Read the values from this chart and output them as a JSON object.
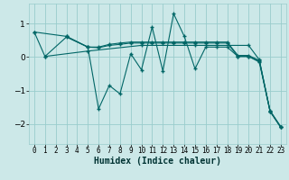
{
  "title": "",
  "xlabel": "Humidex (Indice chaleur)",
  "ylabel": "",
  "bg_color": "#cce8e8",
  "grid_color": "#99cccc",
  "line_color": "#006666",
  "xlim": [
    -0.5,
    23.5
  ],
  "ylim": [
    -2.6,
    1.6
  ],
  "yticks": [
    -2,
    -1,
    0,
    1
  ],
  "xticks": [
    0,
    1,
    2,
    3,
    4,
    5,
    6,
    7,
    8,
    9,
    10,
    11,
    12,
    13,
    14,
    15,
    16,
    17,
    18,
    19,
    20,
    21,
    22,
    23
  ],
  "lines": [
    {
      "x": [
        0,
        1,
        3,
        5,
        6,
        7,
        8,
        9,
        10,
        11,
        12,
        13,
        14,
        15,
        16,
        17,
        18,
        19,
        20,
        21,
        22,
        23
      ],
      "y": [
        0.75,
        0.02,
        0.6,
        0.3,
        -1.55,
        -0.85,
        -1.1,
        0.1,
        -0.38,
        0.9,
        -0.42,
        1.3,
        0.62,
        -0.35,
        0.3,
        0.3,
        0.3,
        0.02,
        0.02,
        -0.15,
        -1.62,
        -2.1
      ]
    },
    {
      "x": [
        0,
        3,
        5,
        6,
        7,
        8,
        9,
        10,
        11,
        12,
        13,
        14,
        15,
        16,
        17,
        18,
        19,
        20,
        21,
        22,
        23
      ],
      "y": [
        0.75,
        0.62,
        0.3,
        0.28,
        0.35,
        0.38,
        0.42,
        0.42,
        0.42,
        0.42,
        0.42,
        0.42,
        0.42,
        0.42,
        0.42,
        0.42,
        0.02,
        0.02,
        -0.12,
        -1.62,
        -2.1
      ]
    },
    {
      "x": [
        3,
        5,
        6,
        7,
        8,
        9,
        10,
        11,
        12,
        13,
        14,
        15,
        16,
        17,
        18,
        19,
        20,
        21,
        22,
        23
      ],
      "y": [
        0.62,
        0.3,
        0.3,
        0.38,
        0.42,
        0.45,
        0.45,
        0.45,
        0.45,
        0.45,
        0.45,
        0.45,
        0.45,
        0.45,
        0.45,
        0.05,
        0.05,
        -0.1,
        -1.6,
        -2.08
      ]
    },
    {
      "x": [
        1,
        5,
        10,
        15,
        20,
        21,
        22,
        23
      ],
      "y": [
        0.02,
        0.18,
        0.35,
        0.35,
        0.35,
        -0.08,
        -1.62,
        -2.1
      ]
    }
  ]
}
